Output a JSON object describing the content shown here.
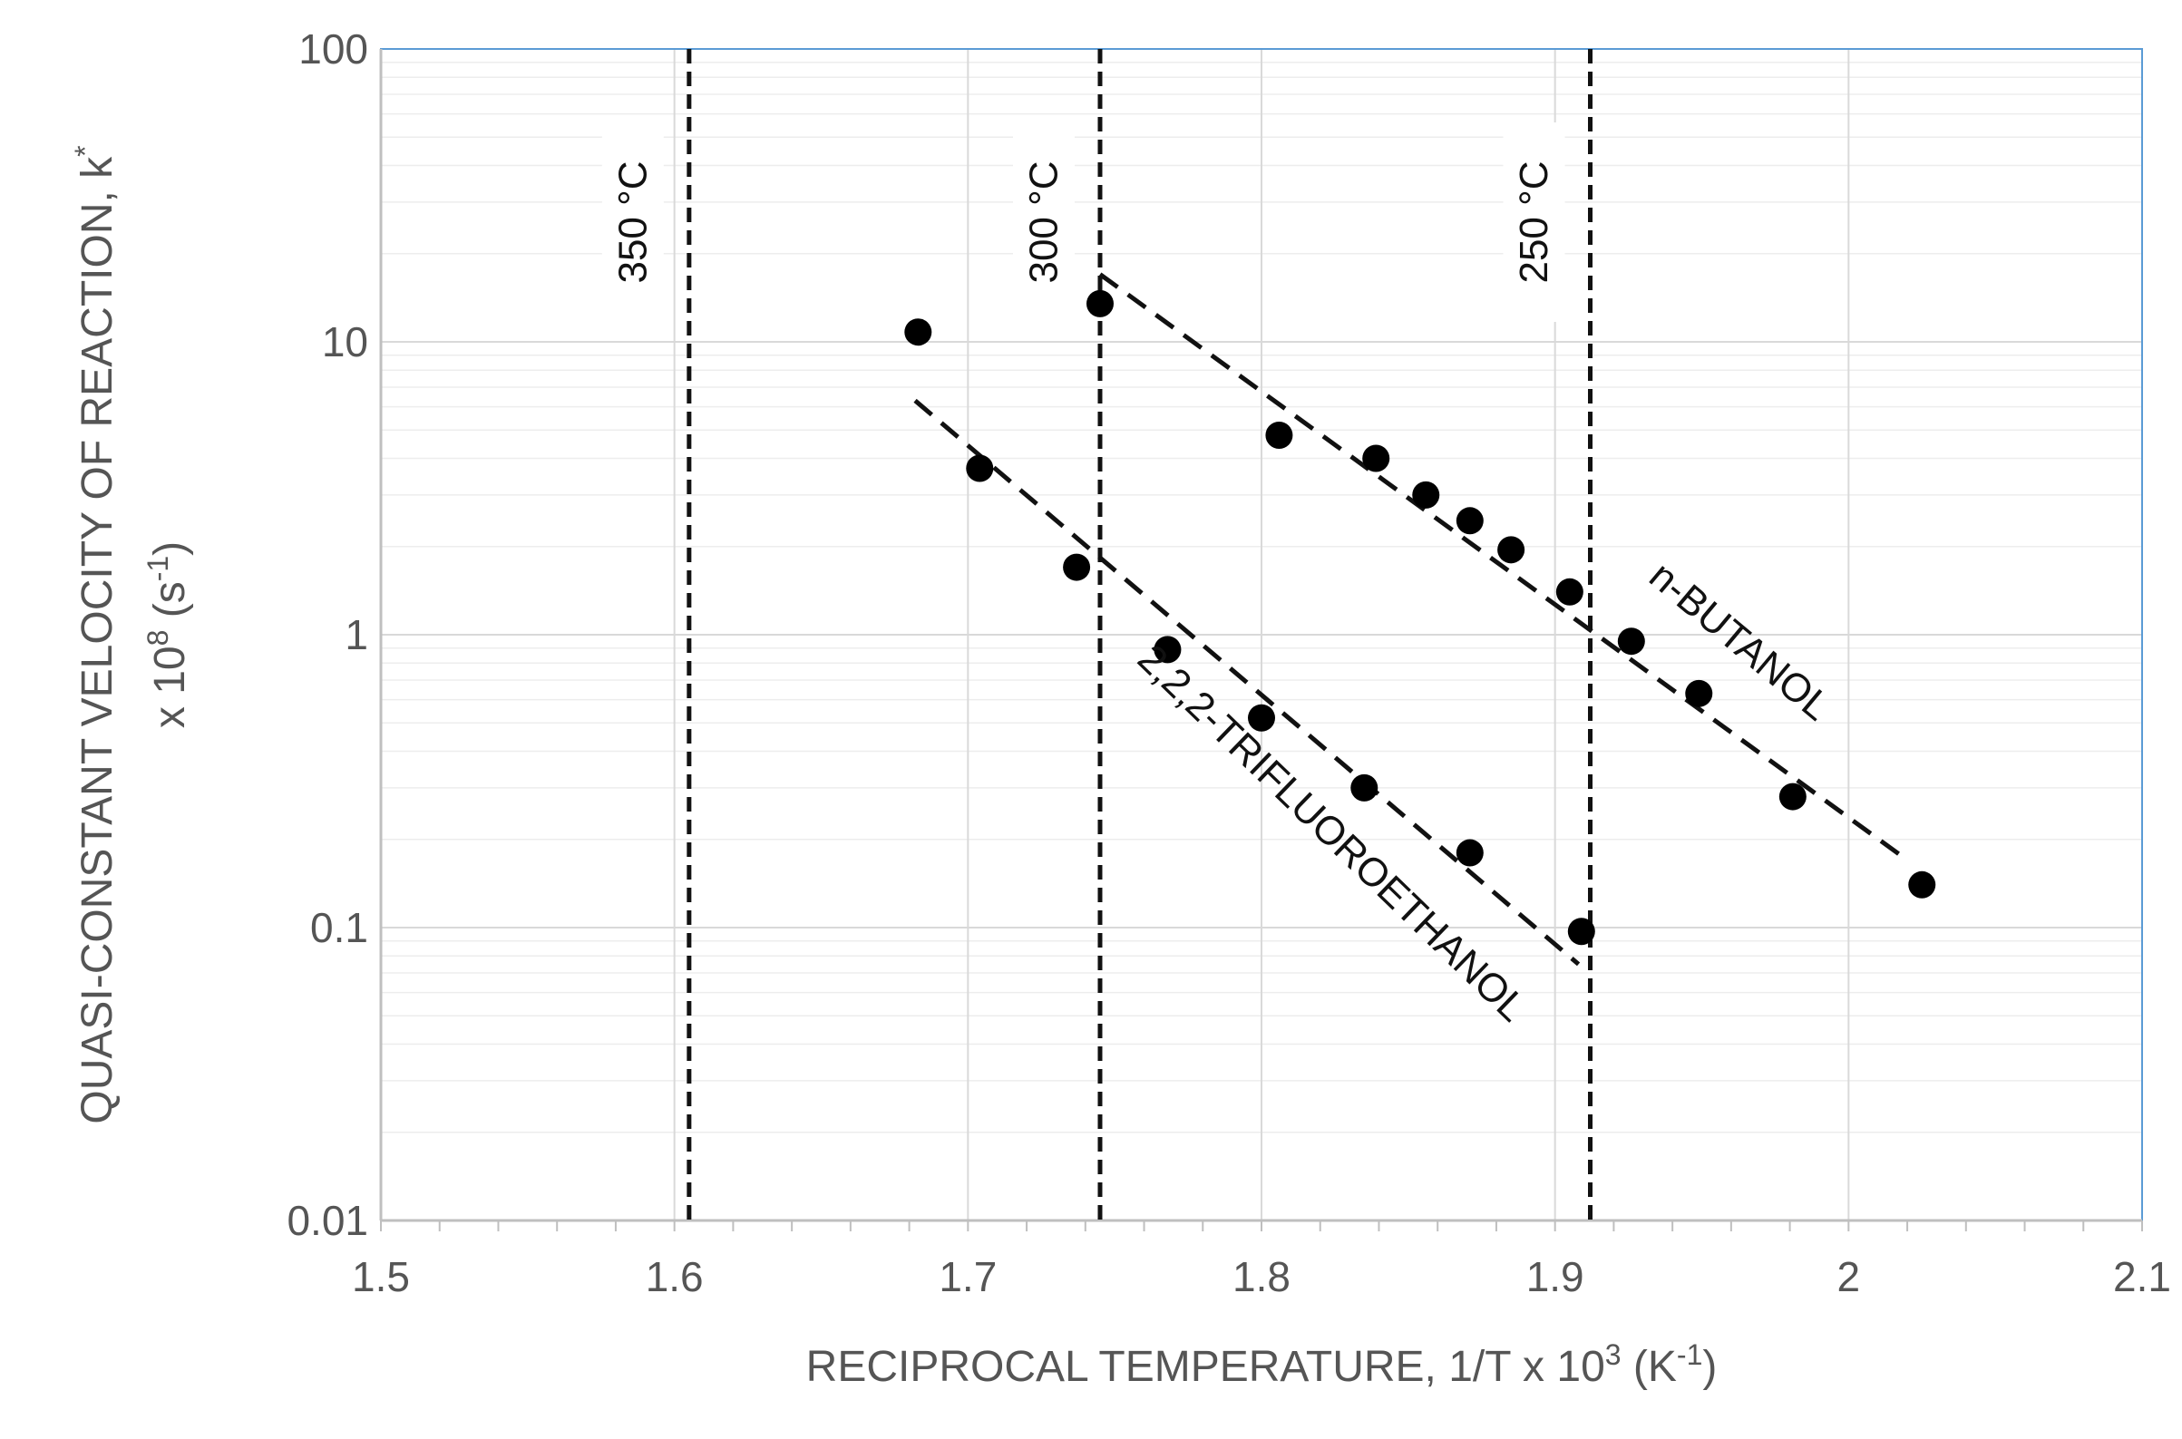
{
  "chart_data": {
    "type": "scatter",
    "xlabel": "RECIPROCAL TEMPERATURE, 1/T x 10",
    "xlabel_sup": "3",
    "xlabel_unit": " (K",
    "xlabel_unit_sup": "-1",
    "xlabel_end": ")",
    "ylabel_line1": "QUASI-CONSTANT VELOCITY OF REACTION, k",
    "ylabel_line1_sup": "*",
    "ylabel_line2": "x 10",
    "ylabel_line2_sup": "8",
    "ylabel_line2_unit": " (s",
    "ylabel_line2_unit_sup": "-1",
    "ylabel_line2_end": ")",
    "xlim": [
      1.5,
      2.1
    ],
    "ylim": [
      0.01,
      100
    ],
    "yscale": "log",
    "grid": true,
    "x_ticks": [
      1.5,
      1.6,
      1.7,
      1.8,
      1.9,
      2.0,
      2.1
    ],
    "x_tick_labels": [
      "1.5",
      "1.6",
      "1.7",
      "1.8",
      "1.9",
      "2",
      "2.1"
    ],
    "y_ticks": [
      0.01,
      0.1,
      1,
      10,
      100
    ],
    "y_tick_labels": [
      "0.01",
      "0.1",
      "1",
      "10",
      "100"
    ],
    "vlines": [
      {
        "x": 1.605,
        "label": "350 °C"
      },
      {
        "x": 1.745,
        "label": "300 °C"
      },
      {
        "x": 1.912,
        "label": "250 °C"
      }
    ],
    "series": [
      {
        "name": "n-BUTANOL",
        "x": [
          1.745,
          1.806,
          1.839,
          1.856,
          1.871,
          1.885,
          1.905,
          1.926,
          1.949,
          1.981,
          2.025
        ],
        "y": [
          13.5,
          4.8,
          4.0,
          3.0,
          2.45,
          1.95,
          1.4,
          0.95,
          0.63,
          0.28,
          0.14
        ],
        "trend": {
          "x": [
            1.745,
            2.02
          ],
          "y": [
            17,
            0.17
          ]
        }
      },
      {
        "name": "2,2,2-TRIFLUOROETHANOL",
        "x": [
          1.683,
          1.704,
          1.737,
          1.768,
          1.8,
          1.835,
          1.871,
          1.909
        ],
        "y": [
          10.8,
          3.7,
          1.7,
          0.89,
          0.52,
          0.3,
          0.18,
          0.097
        ],
        "trend": {
          "x": [
            1.682,
            1.908
          ],
          "y": [
            6.3,
            0.075
          ]
        }
      }
    ]
  }
}
